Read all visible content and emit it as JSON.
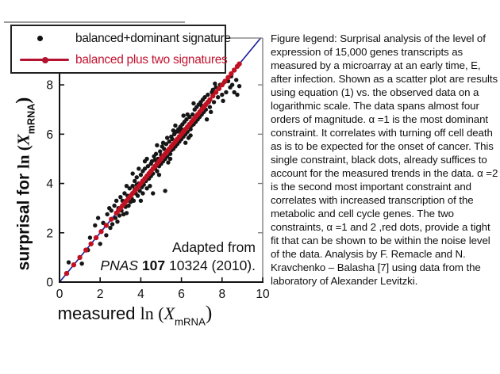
{
  "page": {
    "background": "#ffffff"
  },
  "colors": {
    "red_series": "#c01122",
    "red_text": "#c11430",
    "blue_line": "#1b1b9a",
    "black_series": "#161616",
    "frame_gray": "#777777",
    "axis_black": "#111111"
  },
  "chart": {
    "legend": {
      "items": [
        {
          "label": "balanced+dominant signature",
          "marker": "black-dot"
        },
        {
          "label": "balanced plus two signatures",
          "marker": "red-line-dot"
        }
      ]
    },
    "y_axis_label": {
      "prefix": "surprisal for ",
      "ln": "ln (",
      "variable": "X",
      "subscript": "mRNA",
      "close": ")"
    },
    "x_axis_label": {
      "prefix": "measured ",
      "ln": "ln (",
      "variable": "X",
      "subscript": "mRNA",
      "close": ")"
    },
    "annotation": {
      "line1": "Adapted from",
      "line2_italic": "PNAS ",
      "line2_bold": "107",
      "line2_rest": " 10324 (2010)."
    }
  },
  "figure_legend_text": "Figure legend: Surprisal analysis of the level of expression of 15,000 genes transcripts as measured by a microarray at an early time, E, after infection. Shown as a scatter plot are results using equation (1) vs. the observed data on a logarithmic scale. The data spans almost four orders of magnitude. α =1 is the most dominant constraint. It correlates with turning off cell death as is to be expected for the onset of cancer. This single constraint, black dots, already suffices to account for the measured trends in the data. α =2 is the second most important constraint and correlates with increased transcription of the metabolic and cell cycle genes. The two constraints, α =1 and 2 ,red dots, provide a tight fit that can be shown to be within the noise level of the data. Analysis by F. Remacle and N. Kravchenko – Balasha [7] using data from the laboratory of Alexander Levitzki.",
  "chart_data": {
    "type": "scatter",
    "title": "",
    "xlabel": "measured ln (X_mRNA)",
    "ylabel": "surprisal for ln (X_mRNA)",
    "xlim": [
      0,
      10
    ],
    "ylim": [
      0,
      9.9
    ],
    "xticks": [
      0,
      2,
      4,
      6,
      8,
      10
    ],
    "yticks": [
      0,
      2,
      4,
      6,
      8
    ],
    "right_ticks": [
      2,
      4,
      6,
      8
    ],
    "grid": false,
    "legend_position": "top-left",
    "series": [
      {
        "name": "balanced+dominant signature",
        "type": "scatter",
        "color": "#161616",
        "marker_size": 2.7,
        "points": [
          [
            0.45,
            0.8
          ],
          [
            1.1,
            0.75
          ],
          [
            1.4,
            1.3
          ],
          [
            1.5,
            1.8
          ],
          [
            1.75,
            2.3
          ],
          [
            1.9,
            2.6
          ],
          [
            2.0,
            1.55
          ],
          [
            2.15,
            2.4
          ],
          [
            2.3,
            1.9
          ],
          [
            2.35,
            2.75
          ],
          [
            2.45,
            3.0
          ],
          [
            2.5,
            2.2
          ],
          [
            2.55,
            2.9
          ],
          [
            2.6,
            2.35
          ],
          [
            2.7,
            3.1
          ],
          [
            2.75,
            2.6
          ],
          [
            2.8,
            3.3
          ],
          [
            2.85,
            2.45
          ],
          [
            2.9,
            3.0
          ],
          [
            2.95,
            2.7
          ],
          [
            3.0,
            3.45
          ],
          [
            3.05,
            2.9
          ],
          [
            3.1,
            3.3
          ],
          [
            3.15,
            2.75
          ],
          [
            3.2,
            3.6
          ],
          [
            3.25,
            3.05
          ],
          [
            3.3,
            2.8
          ],
          [
            3.35,
            3.5
          ],
          [
            3.4,
            3.1
          ],
          [
            3.45,
            3.8
          ],
          [
            3.5,
            3.25
          ],
          [
            3.3,
            3.9
          ],
          [
            3.55,
            3.4
          ],
          [
            3.6,
            3.9
          ],
          [
            3.65,
            3.3
          ],
          [
            3.7,
            4.1
          ],
          [
            3.75,
            3.6
          ],
          [
            3.8,
            4.25
          ],
          [
            3.85,
            3.5
          ],
          [
            3.9,
            4.0
          ],
          [
            3.95,
            3.7
          ],
          [
            4.0,
            4.35
          ],
          [
            4.05,
            3.85
          ],
          [
            4.1,
            4.5
          ],
          [
            4.15,
            3.95
          ],
          [
            4.2,
            4.6
          ],
          [
            4.25,
            4.1
          ],
          [
            4.3,
            3.8
          ],
          [
            4.35,
            4.7
          ],
          [
            4.4,
            4.2
          ],
          [
            4.45,
            3.9
          ],
          [
            4.5,
            4.8
          ],
          [
            4.0,
            3.3
          ],
          [
            4.2,
            4.9
          ],
          [
            3.6,
            4.4
          ],
          [
            4.45,
            4.45
          ],
          [
            3.9,
            4.6
          ],
          [
            4.1,
            3.6
          ],
          [
            4.3,
            5.0
          ],
          [
            3.8,
            3.95
          ],
          [
            4.5,
            4.3
          ],
          [
            3.7,
            3.75
          ],
          [
            4.55,
            4.9
          ],
          [
            4.6,
            4.4
          ],
          [
            4.65,
            5.1
          ],
          [
            4.7,
            4.6
          ],
          [
            4.75,
            5.2
          ],
          [
            4.8,
            4.5
          ],
          [
            4.85,
            5.0
          ],
          [
            4.9,
            4.7
          ],
          [
            4.95,
            5.3
          ],
          [
            5.0,
            4.8
          ],
          [
            5.05,
            5.5
          ],
          [
            5.1,
            4.9
          ],
          [
            5.15,
            5.4
          ],
          [
            5.2,
            5.0
          ],
          [
            5.25,
            5.6
          ],
          [
            5.3,
            5.1
          ],
          [
            5.35,
            4.85
          ],
          [
            5.4,
            5.7
          ],
          [
            5.45,
            5.2
          ],
          [
            5.5,
            5.35
          ],
          [
            4.6,
            3.6
          ],
          [
            5.2,
            3.7
          ],
          [
            4.8,
            5.55
          ],
          [
            5.0,
            5.15
          ],
          [
            5.3,
            5.85
          ],
          [
            4.7,
            4.95
          ],
          [
            5.45,
            5.0
          ],
          [
            4.9,
            4.35
          ],
          [
            5.1,
            5.65
          ],
          [
            5.5,
            5.9
          ],
          [
            5.55,
            5.8
          ],
          [
            5.6,
            5.4
          ],
          [
            5.65,
            6.0
          ],
          [
            5.7,
            5.5
          ],
          [
            5.75,
            6.1
          ],
          [
            5.8,
            5.6
          ],
          [
            5.85,
            6.2
          ],
          [
            5.9,
            5.7
          ],
          [
            5.95,
            6.3
          ],
          [
            6.0,
            5.8
          ],
          [
            6.05,
            6.4
          ],
          [
            6.1,
            5.9
          ],
          [
            6.15,
            6.5
          ],
          [
            6.2,
            6.0
          ],
          [
            6.25,
            6.6
          ],
          [
            6.3,
            6.1
          ],
          [
            6.35,
            5.85
          ],
          [
            6.4,
            6.7
          ],
          [
            6.45,
            6.2
          ],
          [
            6.5,
            6.35
          ],
          [
            5.7,
            6.35
          ],
          [
            6.1,
            6.75
          ],
          [
            5.9,
            6.1
          ],
          [
            6.3,
            6.8
          ],
          [
            6.45,
            5.95
          ],
          [
            5.6,
            6.15
          ],
          [
            6.2,
            5.65
          ],
          [
            6.0,
            6.2
          ],
          [
            6.55,
            6.8
          ],
          [
            6.6,
            6.4
          ],
          [
            6.65,
            7.0
          ],
          [
            6.7,
            6.5
          ],
          [
            6.75,
            7.1
          ],
          [
            6.8,
            6.6
          ],
          [
            6.85,
            7.2
          ],
          [
            6.9,
            6.7
          ],
          [
            6.95,
            7.3
          ],
          [
            7.0,
            6.8
          ],
          [
            7.05,
            7.4
          ],
          [
            7.1,
            6.9
          ],
          [
            7.15,
            7.5
          ],
          [
            7.2,
            7.0
          ],
          [
            7.3,
            7.6
          ],
          [
            7.4,
            7.1
          ],
          [
            7.45,
            6.9
          ],
          [
            7.5,
            7.7
          ],
          [
            6.6,
            7.25
          ],
          [
            7.25,
            6.6
          ],
          [
            7.0,
            7.15
          ],
          [
            7.35,
            7.3
          ],
          [
            7.55,
            7.8
          ],
          [
            7.6,
            7.3
          ],
          [
            7.7,
            7.9
          ],
          [
            7.8,
            7.5
          ],
          [
            7.9,
            8.0
          ],
          [
            8.0,
            7.6
          ],
          [
            8.1,
            8.1
          ],
          [
            8.2,
            7.7
          ],
          [
            8.3,
            8.15
          ],
          [
            8.4,
            7.9
          ],
          [
            8.5,
            8.0
          ],
          [
            8.6,
            7.7
          ],
          [
            8.7,
            8.2
          ],
          [
            8.85,
            7.95
          ],
          [
            7.65,
            8.05
          ],
          [
            8.05,
            7.35
          ],
          [
            8.45,
            8.35
          ],
          [
            8.75,
            7.6
          ]
        ]
      },
      {
        "name": "identity line",
        "type": "line",
        "color": "#1b1b9a",
        "from": [
          0,
          0
        ],
        "to": [
          9.9,
          9.9
        ]
      },
      {
        "name": "balanced plus two signatures",
        "type": "scatter-on-diagonal",
        "color": "#c01122",
        "marker_size": 3.2,
        "relation": "y = x",
        "x_values": [
          0.35,
          0.7,
          1.0,
          1.3,
          1.55,
          1.8,
          2.05,
          2.3,
          2.55,
          2.8,
          2.9,
          3.0,
          3.1,
          3.2,
          3.3,
          3.4,
          3.5,
          3.6,
          3.7,
          3.8,
          3.9,
          4.0,
          4.1,
          4.2,
          4.3,
          4.4,
          4.5,
          4.6,
          4.7,
          4.8,
          4.9,
          5.0,
          5.1,
          5.2,
          5.3,
          5.4,
          5.5,
          5.6,
          5.7,
          5.8,
          5.9,
          6.0,
          6.1,
          6.2,
          6.3,
          6.4,
          6.5,
          6.6,
          6.7,
          6.8,
          6.9,
          7.0,
          7.1,
          7.2,
          7.3,
          7.4,
          7.55,
          7.7,
          7.85,
          8.0,
          8.15,
          8.3,
          8.45,
          8.6,
          8.75,
          8.85
        ]
      }
    ]
  }
}
